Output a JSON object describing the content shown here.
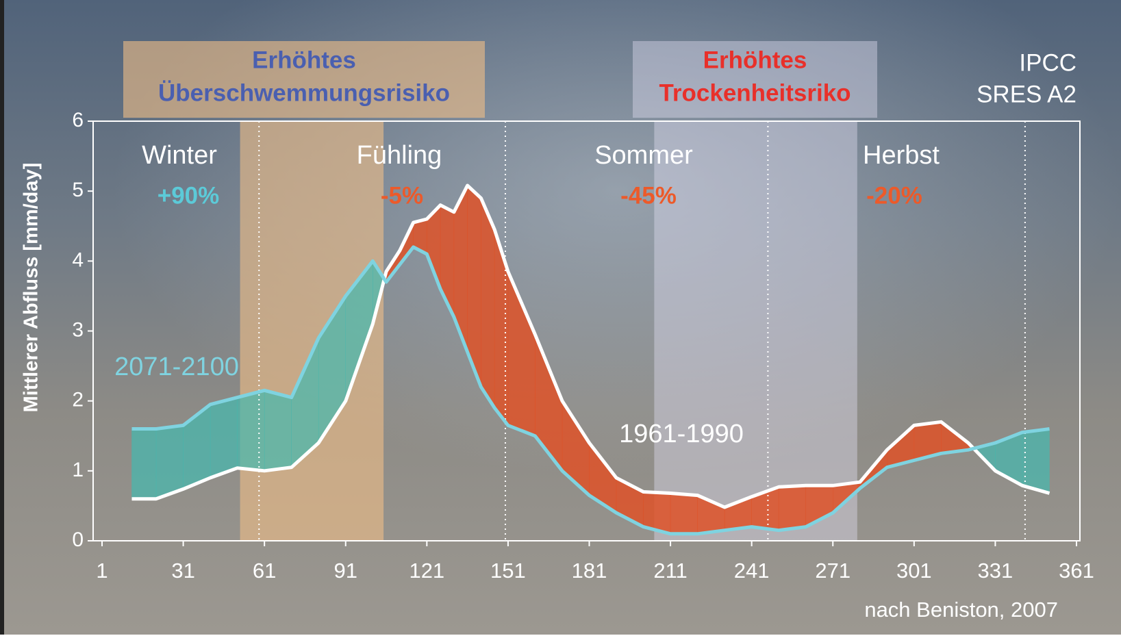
{
  "chart_data": {
    "type": "line",
    "ylabel": "Mittlerer Abfluss [mm/day]",
    "x": [
      12,
      21,
      31,
      41,
      51,
      61,
      71,
      81,
      91,
      101,
      106,
      111,
      116,
      121,
      126,
      131,
      136,
      141,
      146,
      151,
      161,
      171,
      181,
      191,
      201,
      211,
      221,
      231,
      241,
      251,
      261,
      271,
      281,
      291,
      301,
      311,
      321,
      331,
      341,
      351
    ],
    "series": [
      {
        "name": "1961-1990",
        "color": "#ffffff",
        "label_color": "#ffffff",
        "values": [
          0.6,
          0.6,
          0.74,
          0.9,
          1.04,
          1.0,
          1.05,
          1.4,
          2.0,
          3.1,
          3.85,
          4.15,
          4.55,
          4.6,
          4.8,
          4.7,
          5.08,
          4.9,
          4.45,
          3.85,
          2.95,
          2.0,
          1.4,
          0.9,
          0.7,
          0.68,
          0.65,
          0.48,
          0.63,
          0.77,
          0.79,
          0.79,
          0.84,
          1.3,
          1.65,
          1.7,
          1.4,
          1.0,
          0.79,
          0.68
        ]
      },
      {
        "name": "2071-2100",
        "color": "#7fd3e0",
        "label_color": "#7fd3e0",
        "values": [
          1.6,
          1.6,
          1.65,
          1.95,
          2.05,
          2.15,
          2.05,
          2.9,
          3.5,
          4.0,
          3.7,
          3.95,
          4.2,
          4.1,
          3.6,
          3.2,
          2.7,
          2.2,
          1.9,
          1.65,
          1.5,
          1.0,
          0.65,
          0.4,
          0.2,
          0.1,
          0.1,
          0.15,
          0.2,
          0.15,
          0.2,
          0.4,
          0.75,
          1.05,
          1.15,
          1.25,
          1.3,
          1.4,
          1.55,
          1.6
        ]
      }
    ],
    "increase_color": "rgba(70,185,175,0.72)",
    "decrease_color": "rgba(222,82,40,0.85)",
    "xlim": [
      1,
      361
    ],
    "xticks": [
      1,
      31,
      61,
      91,
      121,
      151,
      181,
      211,
      241,
      271,
      301,
      331,
      361
    ],
    "ylim": [
      0,
      6
    ],
    "yticks": [
      0,
      1,
      2,
      3,
      4,
      5,
      6
    ],
    "bands": [
      {
        "lines": [
          "Erhöhtes",
          "Überschwemmungsrisiko"
        ],
        "text_color": "#4a5fb0",
        "from": 52,
        "to": 105,
        "color": "rgba(240,190,135,0.6)"
      },
      {
        "lines": [
          "Erhöhtes",
          "Trockenheitsriko"
        ],
        "text_color": "#e8302a",
        "from": 205,
        "to": 280,
        "color": "rgba(225,222,240,0.42)"
      }
    ],
    "dividers": [
      59,
      150,
      247,
      342
    ],
    "seasons": [
      {
        "name": "Winter",
        "change": "+90%",
        "color": "#5ccad8"
      },
      {
        "name": "Fühling",
        "change": "-5%",
        "color": "#ec5a2a"
      },
      {
        "name": "Sommer",
        "change": "-45%",
        "color": "#ec5a2a"
      },
      {
        "name": "Herbst",
        "change": "-20%",
        "color": "#ec5a2a"
      }
    ],
    "note": [
      "IPCC",
      "SRES A2"
    ],
    "source": "nach Beniston, 2007"
  }
}
